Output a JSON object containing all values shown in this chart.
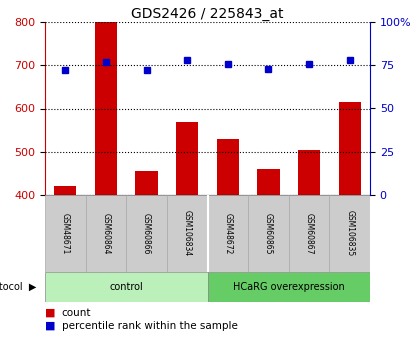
{
  "title": "GDS2426 / 225843_at",
  "samples": [
    "GSM48671",
    "GSM60864",
    "GSM60866",
    "GSM106834",
    "GSM48672",
    "GSM60865",
    "GSM60867",
    "GSM106835"
  ],
  "counts": [
    420,
    800,
    455,
    568,
    530,
    460,
    505,
    615
  ],
  "percentiles": [
    72,
    77,
    72,
    78,
    76,
    73,
    76,
    78
  ],
  "groups": [
    {
      "label": "control",
      "start": 0,
      "end": 4,
      "color": "#bbf0bb"
    },
    {
      "label": "HCaRG overexpression",
      "start": 4,
      "end": 8,
      "color": "#66cc66"
    }
  ],
  "bar_color": "#cc0000",
  "dot_color": "#0000cc",
  "left_axis_color": "#cc0000",
  "right_axis_color": "#0000cc",
  "ylim_left": [
    400,
    800
  ],
  "ylim_right": [
    0,
    100
  ],
  "yticks_left": [
    400,
    500,
    600,
    700,
    800
  ],
  "yticks_right": [
    0,
    25,
    50,
    75,
    100
  ],
  "tick_label_bg": "#cccccc",
  "bar_width": 0.55
}
